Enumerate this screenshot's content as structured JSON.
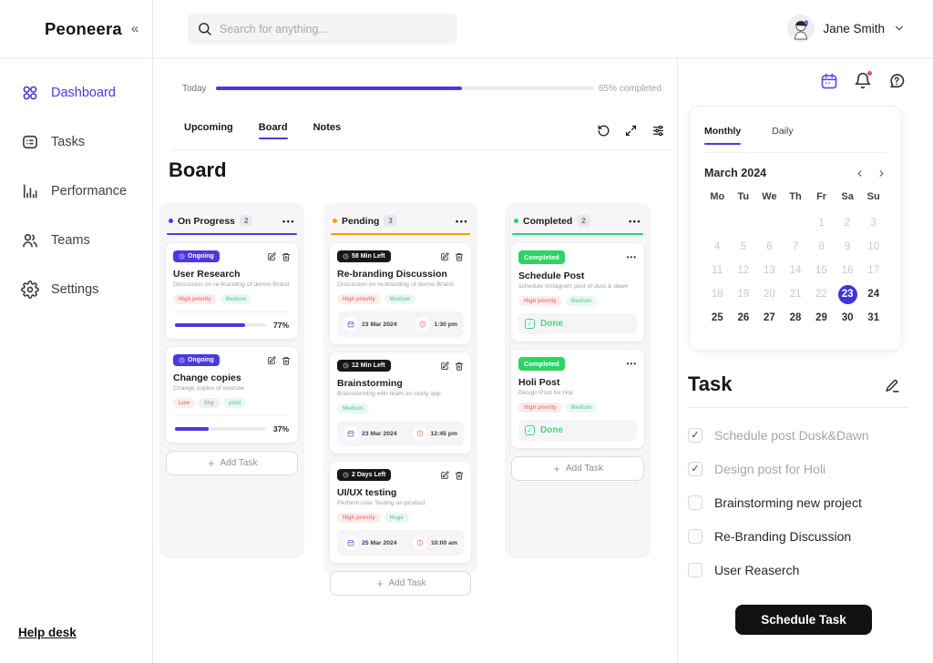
{
  "colors": {
    "accent": "#4b39e0",
    "pending": "#f59e0b",
    "success": "#2bd465",
    "notification": "#e8486f"
  },
  "brand": {
    "name": "Peoneera",
    "logo_icon": "brain-icon",
    "collapse_icon": "chevrons-left-icon"
  },
  "header": {
    "search_placeholder": "Search for anything...",
    "user_name": "Jane Smith"
  },
  "sidebar": {
    "items": [
      {
        "label": "Dashboard",
        "icon": "grid-icon",
        "active": true
      },
      {
        "label": "Tasks",
        "icon": "checklist-icon",
        "active": false
      },
      {
        "label": "Performance",
        "icon": "bar-chart-icon",
        "active": false
      },
      {
        "label": "Teams",
        "icon": "users-icon",
        "active": false
      },
      {
        "label": "Settings",
        "icon": "gear-icon",
        "active": false
      }
    ],
    "help_label": "Help desk"
  },
  "main": {
    "progress": {
      "label": "Today",
      "percent": 65,
      "status_text": "65% completed"
    },
    "tabs": [
      {
        "label": "Upcoming",
        "active": false
      },
      {
        "label": "Board",
        "active": true
      },
      {
        "label": "Notes",
        "active": false
      }
    ],
    "toolbar_icons": [
      "refresh-icon",
      "expand-icon",
      "filter-icon"
    ],
    "board_title": "Board",
    "add_task_label": "Add Task",
    "columns": [
      {
        "name": "On Progress",
        "count": 2,
        "accent": "#4b39e0",
        "cards": [
          {
            "badge": "Ongoing",
            "badge_style": "indigo",
            "title": "User Research",
            "desc": "Discussion on re-branding of dermo Brand",
            "tags": [
              {
                "label": "High priority",
                "style": "pink"
              },
              {
                "label": "Medium",
                "style": "green"
              }
            ],
            "progress": 77
          },
          {
            "badge": "Ongoing",
            "badge_style": "indigo",
            "title": "Change copies",
            "desc": "Change copies of website",
            "tags": [
              {
                "label": "Low",
                "style": "pink"
              },
              {
                "label": "tiny",
                "style": "gray"
              },
              {
                "label": "pixel",
                "style": "green"
              }
            ],
            "progress": 37
          }
        ]
      },
      {
        "name": "Pending",
        "count": 3,
        "accent": "#f59e0b",
        "cards": [
          {
            "badge": "58 Min Left",
            "badge_style": "dark",
            "title": "Re-branding Discussion",
            "desc": "Discussion on re-branding of dermo Brand",
            "tags": [
              {
                "label": "High priority",
                "style": "pink"
              },
              {
                "label": "Medium",
                "style": "green"
              }
            ],
            "date": "23 Mar 2024",
            "time": "1:30 pm"
          },
          {
            "badge": "12 Min Left",
            "badge_style": "dark",
            "title": "Brainstorming",
            "desc": "Brainstorming with team on storly app",
            "tags": [
              {
                "label": "Medium",
                "style": "green"
              }
            ],
            "date": "23 Mar 2024",
            "time": "12:45 pm"
          },
          {
            "badge": "2 Days Left",
            "badge_style": "dark",
            "title": "UI/UX testing",
            "desc": "Perform user Testing on product",
            "tags": [
              {
                "label": "High priority",
                "style": "pink"
              },
              {
                "label": "Huge",
                "style": "green"
              }
            ],
            "date": "25 Mar 2024",
            "time": "10:00 am"
          }
        ]
      },
      {
        "name": "Completed",
        "count": 2,
        "accent": "#2bd465",
        "cards": [
          {
            "badge": "Completed",
            "badge_style": "green",
            "menu": true,
            "title": "Schedule Post",
            "desc": "schedule instagram post of dust & dawn",
            "tags": [
              {
                "label": "High priority",
                "style": "pink"
              },
              {
                "label": "Medium",
                "style": "green"
              }
            ],
            "done_label": "Done"
          },
          {
            "badge": "Completed",
            "badge_style": "green",
            "menu": true,
            "title": "Holi Post",
            "desc": "Design Post for Holi",
            "tags": [
              {
                "label": "High priority",
                "style": "pink"
              },
              {
                "label": "Medium",
                "style": "green"
              }
            ],
            "done_label": "Done"
          }
        ]
      }
    ]
  },
  "right": {
    "top_icons": [
      {
        "icon": "calendar-icon",
        "accent": true,
        "notification_dot": false
      },
      {
        "icon": "bell-icon",
        "accent": false,
        "notification_dot": true
      },
      {
        "icon": "help-chat-icon",
        "accent": false,
        "notification_dot": false
      }
    ],
    "calendar_tabs": [
      {
        "label": "Monthly",
        "active": true
      },
      {
        "label": "Daily",
        "active": false
      }
    ],
    "calendar": {
      "month": "March 2024",
      "weekdays": [
        "Mo",
        "Tu",
        "We",
        "Th",
        "Fr",
        "Sa",
        "Su"
      ],
      "weeks": [
        [
          "",
          "",
          "",
          "",
          "1",
          "2",
          "3"
        ],
        [
          "4",
          "5",
          "6",
          "7",
          "8",
          "9",
          "10"
        ],
        [
          "11",
          "12",
          "13",
          "14",
          "15",
          "16",
          "17"
        ],
        [
          "18",
          "19",
          "20",
          "21",
          "22",
          "23",
          "24"
        ],
        [
          "25",
          "26",
          "27",
          "28",
          "29",
          "30",
          "31"
        ]
      ],
      "selected_day": "23"
    },
    "task_panel": {
      "title": "Task",
      "items": [
        {
          "label": "Schedule post Dusk&Dawn",
          "checked": true
        },
        {
          "label": "Design post for Holi",
          "checked": true
        },
        {
          "label": "Brainstorming new project",
          "checked": false
        },
        {
          "label": "Re-Branding Discussion",
          "checked": false
        },
        {
          "label": "User Reaserch",
          "checked": false
        }
      ],
      "button_label": "Schedule Task"
    }
  }
}
